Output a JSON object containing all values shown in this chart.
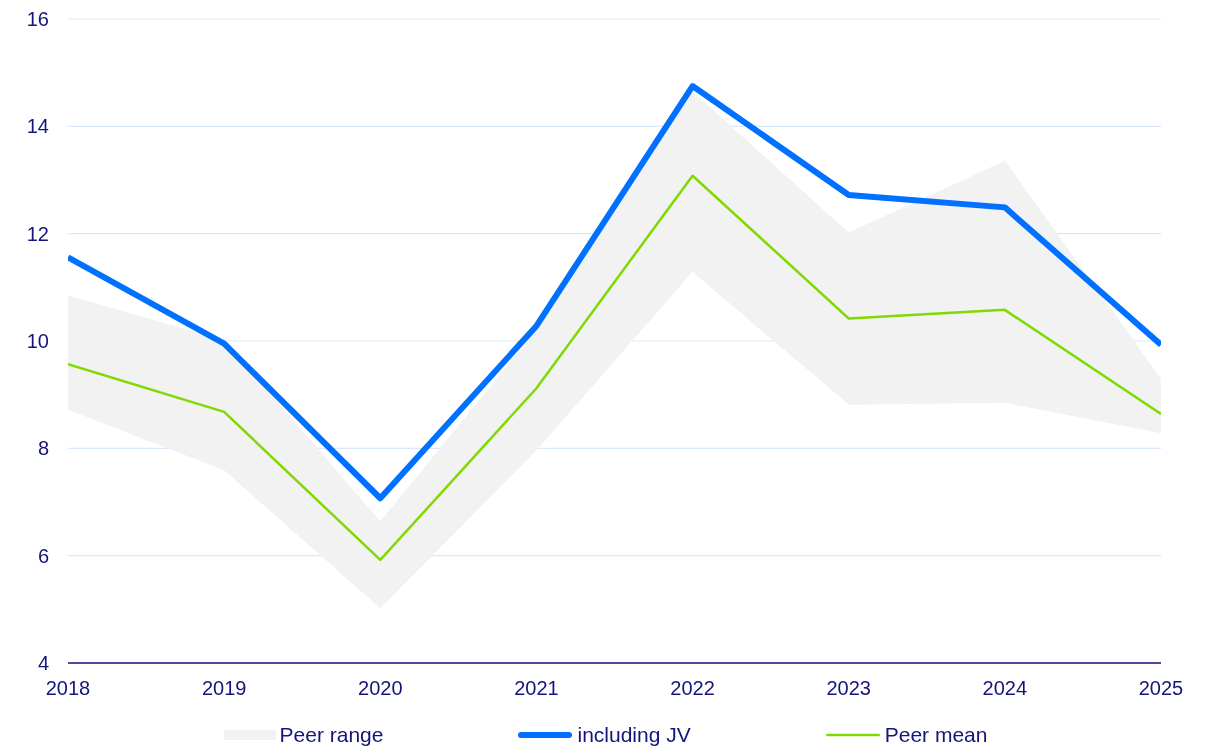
{
  "chart_data": {
    "type": "line",
    "categories": [
      "2018",
      "2019",
      "2020",
      "2021",
      "2022",
      "2023",
      "2024",
      "2025"
    ],
    "series": [
      {
        "name": "Peer range",
        "type": "area",
        "color": "#f2f2f2",
        "values": [
          null,
          null,
          null,
          null,
          null,
          null,
          null,
          null
        ],
        "lower": [
          8.72,
          7.59,
          5.02,
          7.96,
          11.29,
          8.81,
          8.85,
          8.28
        ],
        "upper": [
          10.85,
          10.02,
          6.64,
          10.2,
          14.65,
          12.02,
          13.36,
          9.3
        ]
      },
      {
        "name": "including JV",
        "color": "#0070ff",
        "values": [
          11.56,
          9.95,
          7.07,
          10.28,
          14.75,
          12.72,
          12.49,
          9.93
        ]
      },
      {
        "name": "Peer mean",
        "color": "#80d900",
        "values": [
          9.57,
          8.68,
          5.92,
          9.12,
          13.08,
          10.42,
          10.58,
          8.64
        ]
      }
    ],
    "ylim": [
      4,
      16
    ],
    "yticks": [
      4,
      6,
      8,
      10,
      12,
      14,
      16
    ],
    "grid": "y",
    "legend": "bottom"
  }
}
